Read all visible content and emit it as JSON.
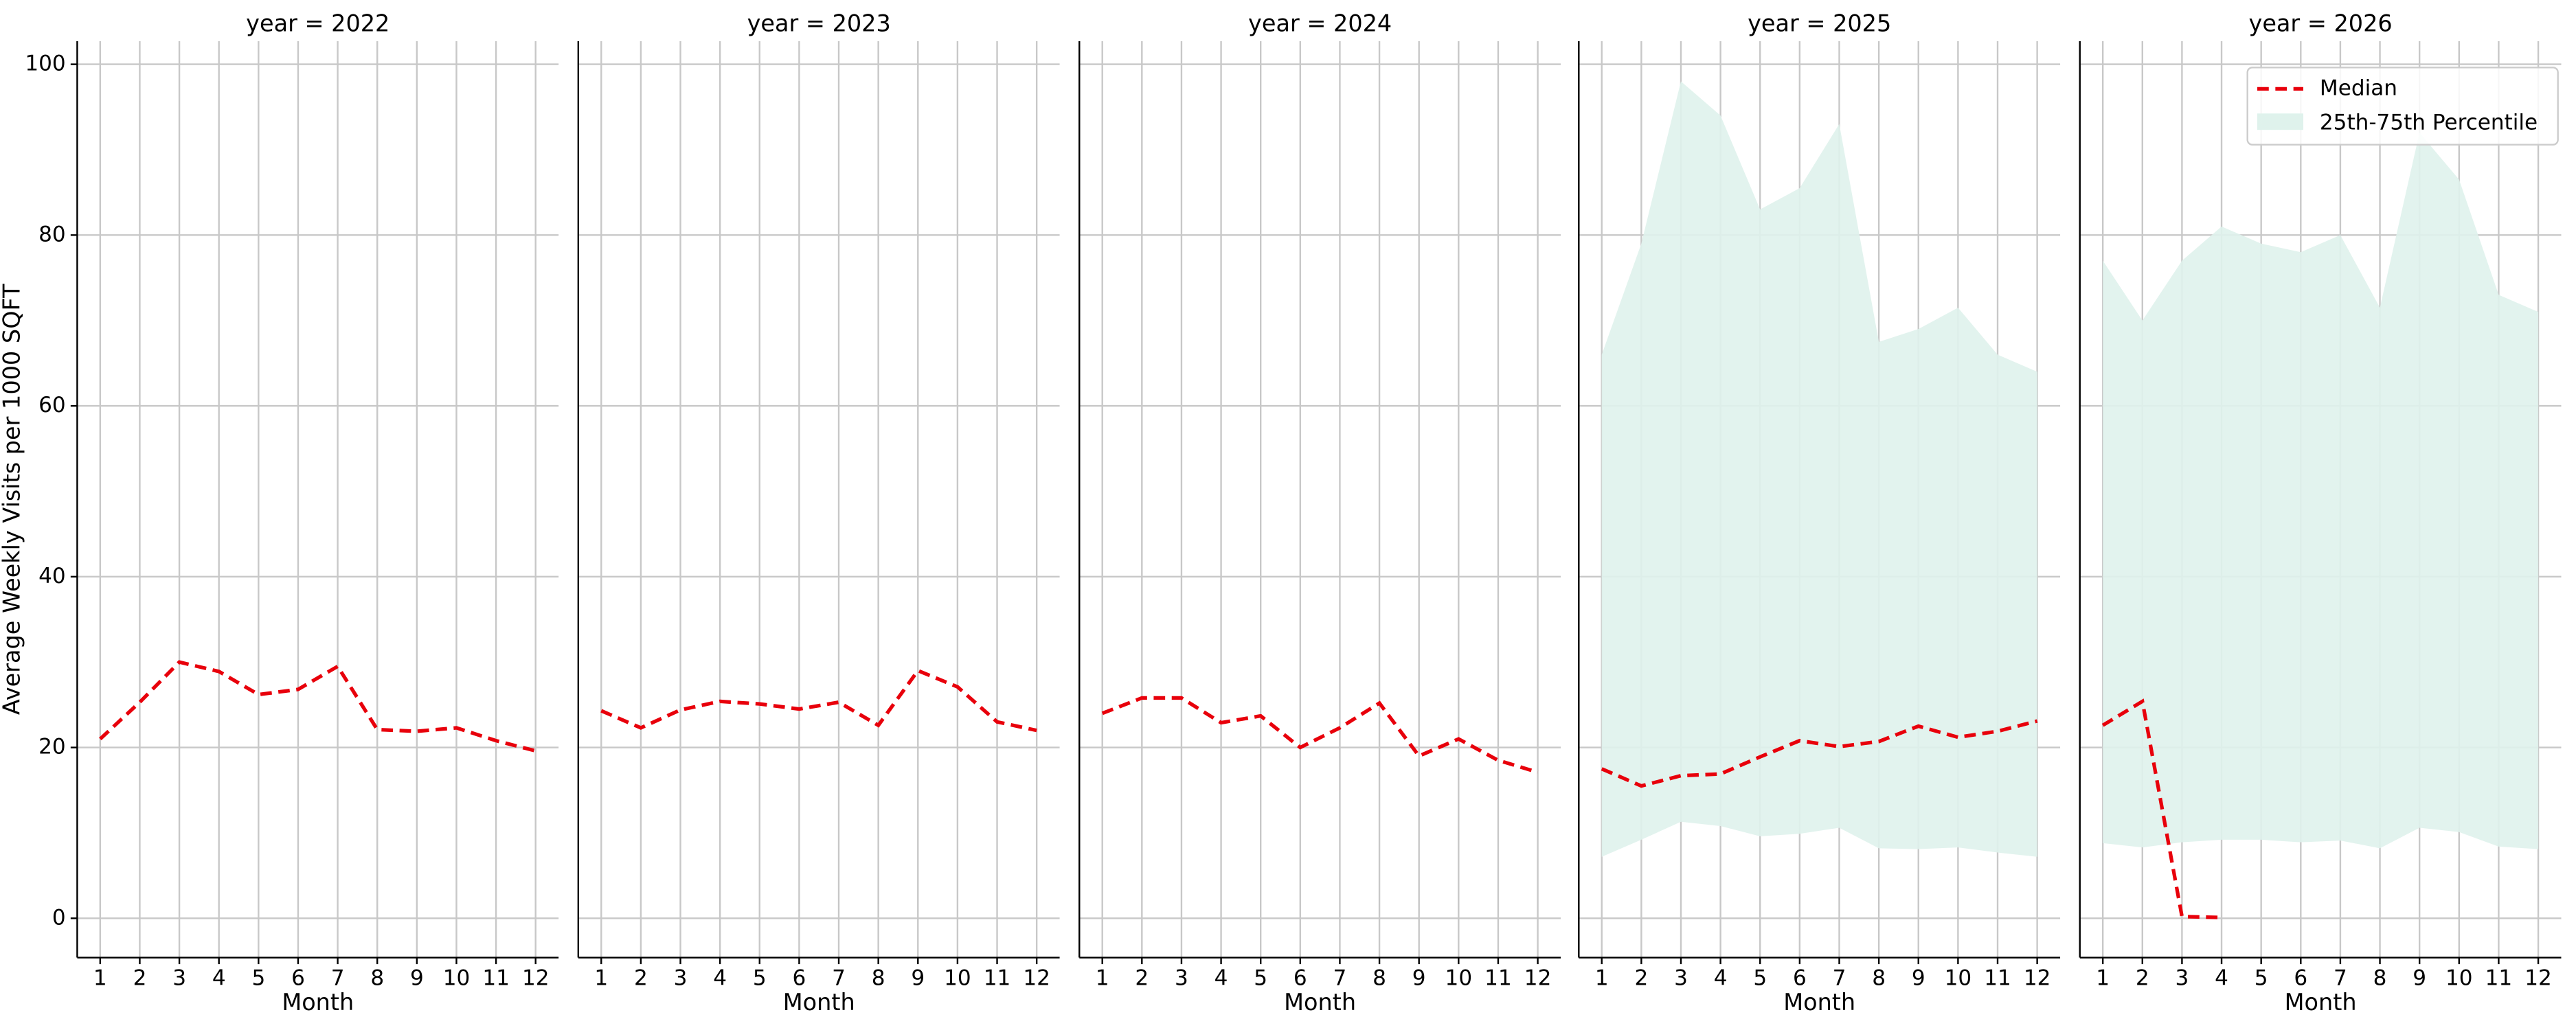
{
  "chart_data": [
    {
      "type": "line",
      "title": "year = 2022",
      "xlabel": "Month",
      "ylabel": "Average Weekly Visits per 1000 SQFT",
      "x": [
        1,
        2,
        3,
        4,
        5,
        6,
        7,
        8,
        9,
        10,
        11,
        12
      ],
      "xlim": [
        0.42,
        12.58
      ],
      "xticks": [
        1,
        2,
        3,
        4,
        5,
        6,
        7,
        8,
        9,
        10,
        11,
        12
      ],
      "ylim": [
        -4.6,
        102.7
      ],
      "yticks": [
        0,
        20,
        40,
        60,
        80,
        100
      ],
      "grid": true,
      "series": [
        {
          "color": "#e8000b",
          "values": [
            21,
            25.3,
            30,
            28.9,
            26.2,
            26.8,
            29.5,
            22.1,
            21.9,
            22.3,
            20.8,
            19.6
          ]
        }
      ]
    },
    {
      "type": "line",
      "title": "year = 2023",
      "xlabel": "Month",
      "x": [
        1,
        2,
        3,
        4,
        5,
        6,
        7,
        8,
        9,
        10,
        11,
        12
      ],
      "xlim": [
        0.42,
        12.58
      ],
      "xticks": [
        1,
        2,
        3,
        4,
        5,
        6,
        7,
        8,
        9,
        10,
        11,
        12
      ],
      "ylim": [
        -4.6,
        102.7
      ],
      "yticks": [
        0,
        20,
        40,
        60,
        80,
        100
      ],
      "grid": true,
      "series": [
        {
          "color": "#e8000b",
          "values": [
            24.3,
            22.3,
            24.4,
            25.4,
            25.1,
            24.5,
            25.3,
            22.6,
            29,
            27.1,
            23,
            22
          ]
        }
      ]
    },
    {
      "type": "line",
      "title": "year = 2024",
      "xlabel": "Month",
      "x": [
        1,
        2,
        3,
        4,
        5,
        6,
        7,
        8,
        9,
        10,
        11,
        12
      ],
      "xlim": [
        0.42,
        12.58
      ],
      "xticks": [
        1,
        2,
        3,
        4,
        5,
        6,
        7,
        8,
        9,
        10,
        11,
        12
      ],
      "ylim": [
        -4.6,
        102.7
      ],
      "yticks": [
        0,
        20,
        40,
        60,
        80,
        100
      ],
      "grid": true,
      "series": [
        {
          "color": "#e8000b",
          "values": [
            24,
            25.8,
            25.8,
            22.9,
            23.7,
            20,
            22.3,
            25.2,
            19,
            21,
            18.5,
            17.1
          ]
        }
      ]
    },
    {
      "type": "line",
      "title": "year = 2025",
      "xlabel": "Month",
      "x": [
        1,
        2,
        3,
        4,
        5,
        6,
        7,
        8,
        9,
        10,
        11,
        12
      ],
      "xlim": [
        0.42,
        12.58
      ],
      "xticks": [
        1,
        2,
        3,
        4,
        5,
        6,
        7,
        8,
        9,
        10,
        11,
        12
      ],
      "ylim": [
        -4.6,
        102.7
      ],
      "yticks": [
        0,
        20,
        40,
        60,
        80,
        100
      ],
      "grid": true,
      "band": {
        "color": "#dff2ec",
        "upper": [
          66,
          79,
          98,
          94,
          83,
          85.5,
          93,
          67.5,
          69,
          71.5,
          66,
          64
        ],
        "lower": [
          7.2,
          9.2,
          11.3,
          10.8,
          9.6,
          9.9,
          10.6,
          8.2,
          8.1,
          8.3,
          7.7,
          7.2
        ]
      },
      "series": [
        {
          "color": "#e8000b",
          "values": [
            17.5,
            15.5,
            16.7,
            16.9,
            18.9,
            20.8,
            20.1,
            20.7,
            22.5,
            21.2,
            21.9,
            23.1
          ]
        }
      ]
    },
    {
      "type": "line",
      "title": "year = 2026",
      "xlabel": "Month",
      "legend": "upper right",
      "x": [
        1,
        2,
        3,
        4,
        5,
        6,
        7,
        8,
        9,
        10,
        11,
        12
      ],
      "xlim": [
        0.42,
        12.58
      ],
      "xticks": [
        1,
        2,
        3,
        4,
        5,
        6,
        7,
        8,
        9,
        10,
        11,
        12
      ],
      "ylim": [
        -4.6,
        102.7
      ],
      "yticks": [
        0,
        20,
        40,
        60,
        80,
        100
      ],
      "grid": true,
      "band": {
        "name": "25th-75th Percentile",
        "color": "#dff2ec",
        "upper": [
          77,
          70,
          77,
          81,
          79,
          78,
          80,
          71.5,
          92,
          86.5,
          73,
          71
        ],
        "lower": [
          8.8,
          8.3,
          8.9,
          9.2,
          9.2,
          8.9,
          9.1,
          8.2,
          10.6,
          10.1,
          8.4,
          8.1
        ]
      },
      "series": [
        {
          "name": "Median",
          "color": "#e8000b",
          "values": [
            22.6,
            25.4,
            0.2,
            0.1,
            null,
            null,
            null,
            null,
            null,
            null,
            null,
            null
          ]
        }
      ]
    }
  ]
}
